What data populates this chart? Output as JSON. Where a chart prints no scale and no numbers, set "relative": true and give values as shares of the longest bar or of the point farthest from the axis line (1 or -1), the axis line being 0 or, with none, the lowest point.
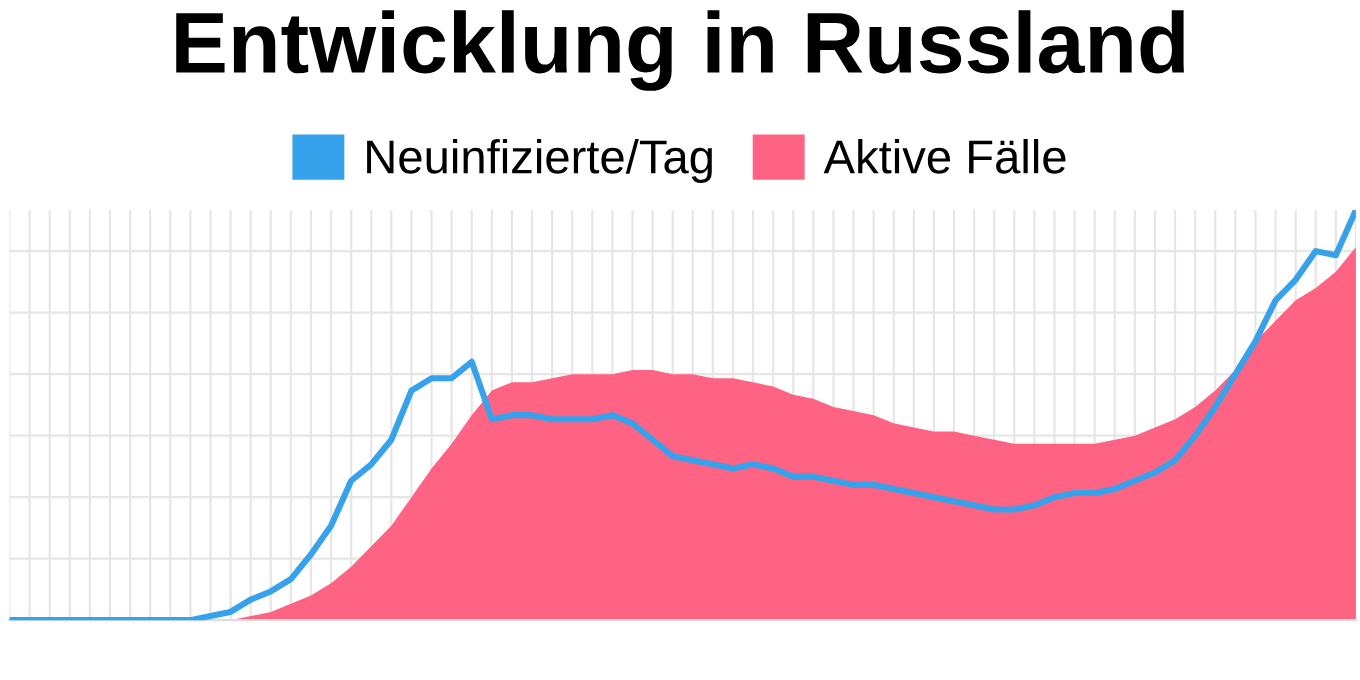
{
  "chart_data": {
    "type": "line",
    "title": "Entwicklung in Russland",
    "relative": true,
    "grid": true,
    "legend": "top",
    "marker": "none",
    "line_style": "solid",
    "categories": [
      null,
      null,
      null,
      null,
      null,
      null,
      null,
      null,
      null,
      null,
      null,
      null,
      null,
      null,
      null,
      null,
      null,
      null,
      null,
      null,
      null,
      null,
      null,
      null,
      null,
      null,
      null,
      null,
      null,
      null,
      null,
      null,
      null,
      null,
      null,
      null,
      null,
      null,
      null,
      null,
      null,
      null,
      null,
      null,
      null,
      null,
      null,
      null,
      null,
      null,
      null,
      null,
      null,
      null,
      null,
      null,
      null,
      null,
      null,
      null,
      null,
      null,
      null,
      null,
      null,
      null,
      null,
      null
    ],
    "series": [
      {
        "name": "Aktive Fälle",
        "type": "area",
        "color": "#ff6384",
        "values": [
          0,
          0,
          0,
          0,
          0,
          0,
          0,
          0,
          0,
          0,
          0,
          0,
          0.01,
          0.02,
          0.04,
          0.06,
          0.09,
          0.13,
          0.18,
          0.23,
          0.3,
          0.37,
          0.43,
          0.5,
          0.56,
          0.58,
          0.58,
          0.59,
          0.6,
          0.6,
          0.6,
          0.61,
          0.61,
          0.6,
          0.6,
          0.59,
          0.59,
          0.58,
          0.57,
          0.55,
          0.54,
          0.52,
          0.51,
          0.5,
          0.48,
          0.47,
          0.46,
          0.46,
          0.45,
          0.44,
          0.43,
          0.43,
          0.43,
          0.43,
          0.43,
          0.44,
          0.45,
          0.47,
          0.49,
          0.52,
          0.56,
          0.61,
          0.68,
          0.73,
          0.78,
          0.81,
          0.85,
          0.91
        ]
      },
      {
        "name": "Neuinfizierte/Tag",
        "color": "#36a2eb",
        "values": [
          0,
          0,
          0,
          0,
          0,
          0,
          0,
          0,
          0,
          0,
          0.01,
          0.02,
          0.05,
          0.07,
          0.1,
          0.16,
          0.23,
          0.34,
          0.38,
          0.44,
          0.56,
          0.59,
          0.59,
          0.63,
          0.49,
          0.5,
          0.5,
          0.49,
          0.49,
          0.49,
          0.5,
          0.48,
          0.44,
          0.4,
          0.39,
          0.38,
          0.37,
          0.38,
          0.37,
          0.35,
          0.35,
          0.34,
          0.33,
          0.33,
          0.32,
          0.31,
          0.3,
          0.29,
          0.28,
          0.27,
          0.27,
          0.28,
          0.3,
          0.31,
          0.31,
          0.32,
          0.34,
          0.36,
          0.39,
          0.45,
          0.52,
          0.6,
          0.68,
          0.78,
          0.83,
          0.9,
          0.89,
          1.0
        ]
      }
    ]
  }
}
